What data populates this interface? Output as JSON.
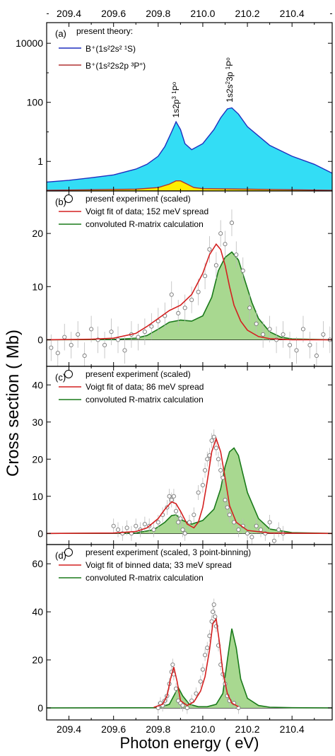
{
  "figure": {
    "ylabel": "Cross section  ( Mb)",
    "xlabel": "Photon energy  ( eV)"
  },
  "chart_data": [
    {
      "panel": "a",
      "type": "area",
      "panel_label": "(a)",
      "legend_title": "present theory:",
      "legend_placement": "top-left",
      "x_range": [
        209.3,
        210.58
      ],
      "y_scale": "log",
      "ylim": [
        0.1,
        50000
      ],
      "y_ticks": [
        "1",
        "100",
        "10000"
      ],
      "y_tick_values": [
        1,
        100,
        10000
      ],
      "x_ticks": [
        "209.4",
        "209.6",
        "209.8",
        "210.0",
        "210.2",
        "210.4"
      ],
      "x_tick_values": [
        209.4,
        209.6,
        209.8,
        210.0,
        210.2,
        210.4
      ],
      "series": [
        {
          "name": "B⁺(1s²2s² ¹S)",
          "color": "#1f2fbf",
          "fill": "#33ddf5",
          "x": [
            209.3,
            209.4,
            209.5,
            209.6,
            209.7,
            209.75,
            209.8,
            209.83,
            209.86,
            209.88,
            209.9,
            209.92,
            209.95,
            210.0,
            210.05,
            210.08,
            210.11,
            210.13,
            210.16,
            210.2,
            210.3,
            210.4,
            210.5,
            210.58
          ],
          "y": [
            0.2,
            0.23,
            0.28,
            0.35,
            0.55,
            0.8,
            1.5,
            3.2,
            10,
            22,
            12,
            4,
            2.5,
            4,
            12,
            30,
            60,
            65,
            40,
            15,
            3.5,
            1.5,
            0.8,
            0.4
          ]
        },
        {
          "name": "B⁺(1s²2s2p ³P°)",
          "color": "#b03030",
          "fill": "#ffee00",
          "x": [
            209.3,
            209.5,
            209.7,
            209.8,
            209.85,
            209.88,
            209.9,
            209.93,
            209.96,
            210.0,
            210.2,
            210.4,
            210.58
          ],
          "y": [
            0.105,
            0.11,
            0.115,
            0.13,
            0.17,
            0.22,
            0.22,
            0.17,
            0.13,
            0.12,
            0.115,
            0.11,
            0.105
          ]
        }
      ],
      "annotations": [
        {
          "label": "1s2p",
          "sup1": "3",
          "mid": " ",
          "sup2": "1",
          "tail": "P",
          "sup3": "o",
          "x": 209.88,
          "y": 30
        },
        {
          "label": "1s2s",
          "sup1": "2",
          "mid": "3p ",
          "sup2": "1",
          "tail": "P",
          "sup3": "o",
          "x": 210.12,
          "y": 100
        }
      ]
    },
    {
      "panel": "b",
      "type": "line",
      "panel_label": "(b)",
      "legend_placement": "top-left",
      "x_range": [
        209.3,
        210.58
      ],
      "ylim": [
        -5,
        28
      ],
      "y_ticks": [
        "0",
        "10",
        "20"
      ],
      "y_tick_values": [
        0,
        10,
        20
      ],
      "series": [
        {
          "name": "present experiment (scaled)",
          "kind": "scatter",
          "color": "#777777",
          "x": [
            209.32,
            209.35,
            209.38,
            209.41,
            209.44,
            209.47,
            209.5,
            209.53,
            209.56,
            209.59,
            209.62,
            209.65,
            209.68,
            209.71,
            209.74,
            209.77,
            209.8,
            209.83,
            209.86,
            209.89,
            209.92,
            209.95,
            209.98,
            210.01,
            210.03,
            210.06,
            210.08,
            210.1,
            210.13,
            210.15,
            210.18,
            210.21,
            210.24,
            210.27,
            210.3,
            210.33,
            210.36,
            210.39,
            210.42,
            210.45,
            210.48,
            210.51,
            210.54,
            210.57
          ],
          "y": [
            -1.5,
            -2.5,
            0.5,
            -1,
            1,
            -3,
            2,
            0,
            -1,
            1.5,
            0,
            -2,
            1,
            0.5,
            1.5,
            2.5,
            3.5,
            4.5,
            8.5,
            5,
            6,
            7.5,
            9,
            12,
            17,
            14,
            20,
            18,
            22,
            16,
            13,
            6,
            3,
            1,
            2,
            0,
            1,
            -1,
            -2,
            2,
            -1,
            -3,
            1,
            0
          ],
          "err": [
            2.5,
            2.5,
            2.5,
            2.5,
            2.5,
            2.5,
            2.5,
            2.5,
            2.5,
            2.5,
            2.5,
            2.5,
            2.5,
            2.5,
            2.5,
            2.5,
            2.5,
            2.5,
            2.5,
            2.5,
            2.5,
            2.5,
            2.5,
            2.5,
            2.5,
            2.5,
            2.5,
            2.5,
            2.5,
            2.5,
            2.5,
            2.5,
            2.5,
            2.5,
            2.5,
            2.5,
            2.5,
            2.5,
            2.5,
            2.5,
            2.5,
            2.5,
            2.5,
            2.5
          ]
        },
        {
          "name": "Voigt fit of data; 152 meV spread",
          "kind": "line",
          "color": "#d42020",
          "x": [
            209.3,
            209.5,
            209.6,
            209.7,
            209.75,
            209.8,
            209.85,
            209.9,
            209.95,
            210.0,
            210.03,
            210.06,
            210.08,
            210.1,
            210.12,
            210.14,
            210.17,
            210.2,
            210.25,
            210.3,
            210.4,
            210.58
          ],
          "y": [
            0,
            0.1,
            0.3,
            1.2,
            2.5,
            4,
            5.5,
            6.5,
            8.5,
            12.5,
            16,
            18,
            17,
            14,
            10,
            6.5,
            3.5,
            1.8,
            0.6,
            0.2,
            0,
            0
          ]
        },
        {
          "name": "convoluted R-matrix calculation",
          "kind": "area",
          "color": "#1a7a1a",
          "fill": "#a8d890",
          "x": [
            209.3,
            209.6,
            209.7,
            209.75,
            209.8,
            209.85,
            209.9,
            209.95,
            210.0,
            210.04,
            210.07,
            210.1,
            210.13,
            210.16,
            210.19,
            210.22,
            210.25,
            210.3,
            210.35,
            210.4,
            210.58
          ],
          "y": [
            0,
            0.05,
            0.3,
            0.8,
            2,
            3.3,
            3.7,
            3.5,
            4.5,
            8,
            13,
            15.5,
            16.5,
            15,
            11,
            7,
            4,
            1.5,
            0.5,
            0.15,
            0
          ]
        }
      ]
    },
    {
      "panel": "c",
      "type": "line",
      "panel_label": "(c)",
      "legend_placement": "top-left",
      "x_range": [
        209.3,
        210.58
      ],
      "ylim": [
        -3,
        45
      ],
      "y_ticks": [
        "0",
        "10",
        "20",
        "30",
        "40"
      ],
      "y_tick_values": [
        0,
        10,
        20,
        30,
        40
      ],
      "series": [
        {
          "name": "present experiment (scaled)",
          "kind": "scatter",
          "color": "#777777",
          "x": [
            209.6,
            209.62,
            209.64,
            209.66,
            209.68,
            209.7,
            209.72,
            209.74,
            209.76,
            209.78,
            209.8,
            209.82,
            209.84,
            209.85,
            209.86,
            209.87,
            209.88,
            209.89,
            209.9,
            209.91,
            209.92,
            209.94,
            209.96,
            209.98,
            210.0,
            210.01,
            210.02,
            210.03,
            210.04,
            210.05,
            210.06,
            210.07,
            210.08,
            210.09,
            210.1,
            210.11,
            210.12,
            210.14,
            210.16,
            210.18,
            210.2,
            210.22,
            210.24,
            210.26,
            210.28,
            210.3,
            210.32,
            210.34,
            210.36
          ],
          "y": [
            2,
            1,
            0,
            1.5,
            0,
            2,
            1,
            2.5,
            2,
            1,
            3,
            5,
            7,
            10,
            9,
            10,
            6,
            3,
            4,
            1,
            0,
            3,
            5,
            11,
            13,
            17,
            20,
            21,
            25,
            26,
            23,
            20,
            17,
            15,
            9,
            7,
            5,
            3,
            1,
            2,
            0,
            -1,
            2,
            1,
            0,
            3,
            -2,
            1,
            0
          ],
          "err": [
            2,
            2,
            2,
            2,
            2,
            2,
            2,
            2,
            2,
            2,
            2,
            2,
            2,
            2,
            2,
            2,
            2,
            2,
            2,
            2,
            2,
            2,
            2,
            2,
            2,
            2,
            2,
            2,
            2,
            2,
            2,
            2,
            2,
            2,
            2,
            2,
            2,
            2,
            2,
            2,
            2,
            2,
            2,
            2,
            2,
            2,
            2,
            2,
            2
          ]
        },
        {
          "name": "Voigt fit of data; 86 meV spread",
          "kind": "line",
          "color": "#d42020",
          "x": [
            209.3,
            209.6,
            209.7,
            209.75,
            209.8,
            209.83,
            209.86,
            209.88,
            209.9,
            209.93,
            209.96,
            209.98,
            210.0,
            210.02,
            210.04,
            210.06,
            210.08,
            210.1,
            210.12,
            210.15,
            210.2,
            210.3,
            210.58
          ],
          "y": [
            0,
            0.1,
            0.5,
            1.5,
            4,
            6.5,
            8.5,
            8,
            6,
            2.5,
            1.5,
            3,
            7,
            14,
            22,
            25.5,
            22,
            15,
            7.5,
            3,
            0.8,
            0.1,
            0
          ]
        },
        {
          "name": "convoluted R-matrix calculation",
          "kind": "area",
          "color": "#1a7a1a",
          "fill": "#a8d890",
          "x": [
            209.3,
            209.7,
            209.78,
            209.83,
            209.86,
            209.88,
            209.91,
            209.95,
            210.0,
            210.05,
            210.08,
            210.1,
            210.12,
            210.14,
            210.16,
            210.18,
            210.2,
            210.25,
            210.3,
            210.4,
            210.58
          ],
          "y": [
            0,
            0.1,
            1,
            3,
            4.8,
            5,
            3.5,
            2.5,
            3.5,
            6.5,
            12,
            18,
            22,
            23,
            21,
            16,
            11,
            4,
            1.2,
            0.2,
            0
          ]
        }
      ]
    },
    {
      "panel": "d",
      "type": "line",
      "panel_label": "(d)",
      "legend_placement": "top-left",
      "x_range": [
        209.3,
        210.58
      ],
      "xlim": [
        209.3,
        210.58
      ],
      "ylim": [
        -5,
        68
      ],
      "y_ticks": [
        "0",
        "20",
        "40",
        "60"
      ],
      "y_tick_values": [
        0,
        20,
        40,
        60
      ],
      "series": [
        {
          "name": "present experiment (scaled, 3 point-binning)",
          "kind": "scatter",
          "color": "#777777",
          "x": [
            209.8,
            209.81,
            209.82,
            209.83,
            209.84,
            209.85,
            209.86,
            209.865,
            209.87,
            209.88,
            209.89,
            209.9,
            209.91,
            209.93,
            209.95,
            209.97,
            209.99,
            210.0,
            210.01,
            210.02,
            210.03,
            210.04,
            210.045,
            210.05,
            210.055,
            210.06,
            210.07,
            210.08,
            210.09,
            210.1,
            210.11,
            210.12,
            210.14,
            210.16
          ],
          "y": [
            0,
            2,
            1,
            3,
            5,
            10,
            15,
            18,
            14,
            8,
            3,
            2,
            1,
            0,
            3,
            6,
            11,
            16,
            22,
            25,
            30,
            36,
            40,
            43,
            38,
            34,
            26,
            18,
            14,
            10,
            5,
            3,
            2,
            0
          ],
          "err": [
            2.5,
            2.5,
            2.5,
            2.5,
            2.5,
            2.5,
            2.5,
            2.5,
            2.5,
            2.5,
            2.5,
            2.5,
            2.5,
            2.5,
            2.5,
            2.5,
            2.5,
            2.5,
            2.5,
            2.5,
            2.5,
            2.5,
            2.5,
            2.5,
            2.5,
            2.5,
            2.5,
            2.5,
            2.5,
            2.5,
            2.5,
            2.5,
            2.5,
            2.5
          ]
        },
        {
          "name": "Voigt fit of binned data; 33 meV spread",
          "kind": "line",
          "color": "#d42020",
          "x": [
            209.78,
            209.82,
            209.84,
            209.855,
            209.87,
            209.885,
            209.9,
            209.93,
            209.96,
            209.99,
            210.01,
            210.03,
            210.045,
            210.06,
            210.075,
            210.09,
            210.11,
            210.13,
            210.16
          ],
          "y": [
            0.2,
            1.5,
            5,
            12,
            17,
            11,
            3,
            1,
            2.5,
            7,
            13,
            24,
            35,
            37,
            27,
            15,
            6,
            2,
            0.5
          ]
        },
        {
          "name": "convoluted R-matrix calculation",
          "kind": "area",
          "color": "#1a7a1a",
          "fill": "#a8d890",
          "x": [
            209.3,
            209.8,
            209.85,
            209.87,
            209.89,
            209.91,
            209.94,
            209.98,
            210.02,
            210.06,
            210.09,
            210.11,
            210.13,
            210.15,
            210.17,
            210.2,
            210.25,
            210.3,
            210.4,
            210.58
          ],
          "y": [
            0,
            0.1,
            1.5,
            5,
            8.5,
            5,
            1.5,
            0.5,
            0.5,
            1.5,
            6,
            20,
            33,
            25,
            12,
            4,
            1,
            0.3,
            0.1,
            0
          ]
        }
      ]
    }
  ]
}
